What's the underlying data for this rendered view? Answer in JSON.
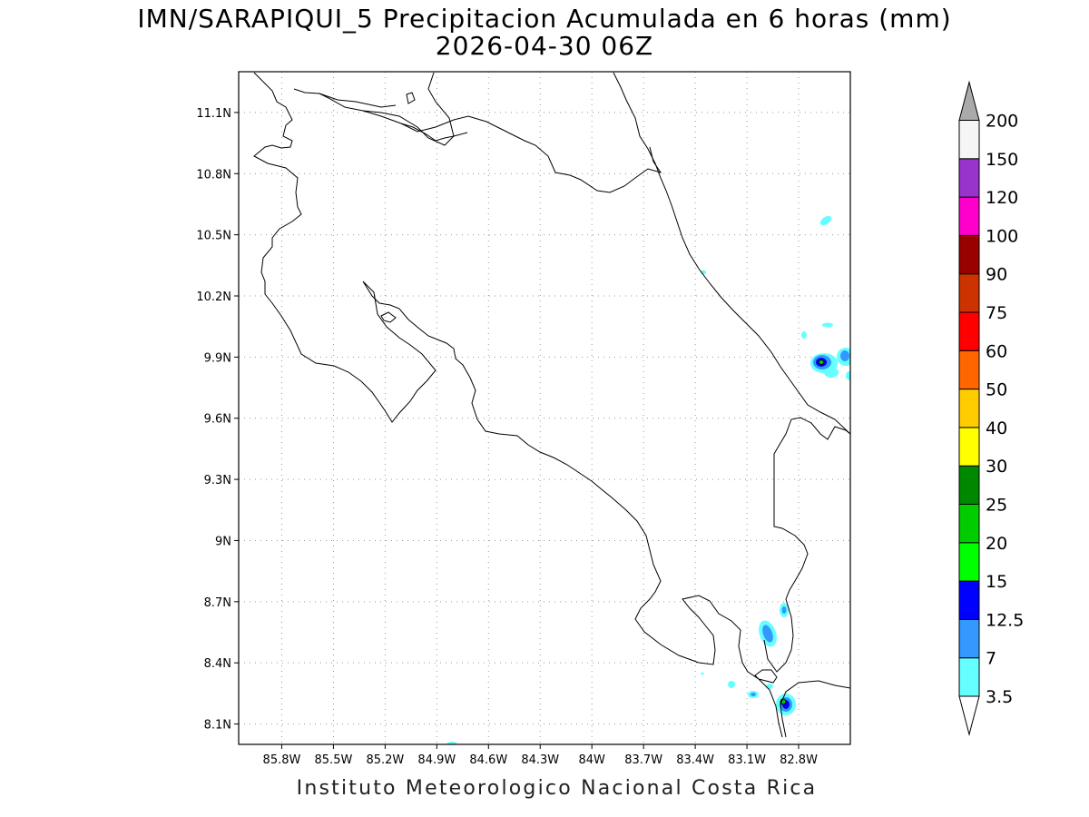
{
  "title": {
    "line1": "IMN/SARAPIQUI_5 Precipitacion Acumulada en 6 horas (mm)",
    "line2": "2026-04-30 06Z"
  },
  "credit": "Instituto Meteorologico Nacional Costa Rica",
  "map": {
    "lon_range": [
      -86.05,
      -82.5
    ],
    "lat_range": [
      8.0,
      11.3
    ],
    "lat_ticks": [
      {
        "value": 11.1,
        "label": "11.1N"
      },
      {
        "value": 10.8,
        "label": "10.8N"
      },
      {
        "value": 10.5,
        "label": "10.5N"
      },
      {
        "value": 10.2,
        "label": "10.2N"
      },
      {
        "value": 9.9,
        "label": "9.9N"
      },
      {
        "value": 9.6,
        "label": "9.6N"
      },
      {
        "value": 9.3,
        "label": "9.3N"
      },
      {
        "value": 9.0,
        "label": "9N"
      },
      {
        "value": 8.7,
        "label": "8.7N"
      },
      {
        "value": 8.4,
        "label": "8.4N"
      },
      {
        "value": 8.1,
        "label": "8.1N"
      }
    ],
    "lon_ticks": [
      {
        "value": -85.8,
        "label": "85.8W"
      },
      {
        "value": -85.5,
        "label": "85.5W"
      },
      {
        "value": -85.2,
        "label": "85.2W"
      },
      {
        "value": -84.9,
        "label": "84.9W"
      },
      {
        "value": -84.6,
        "label": "84.6W"
      },
      {
        "value": -84.3,
        "label": "84.3W"
      },
      {
        "value": -84.0,
        "label": "84W"
      },
      {
        "value": -83.7,
        "label": "83.7W"
      },
      {
        "value": -83.4,
        "label": "83.4W"
      },
      {
        "value": -83.1,
        "label": "83.1W"
      },
      {
        "value": -82.8,
        "label": "82.8W"
      }
    ],
    "grid": true
  },
  "colorbar": {
    "unit": "mm",
    "levels": [
      {
        "label": "3.5",
        "color": "#66ffff"
      },
      {
        "label": "7",
        "color": "#3399ff"
      },
      {
        "label": "12.5",
        "color": "#0000ff"
      },
      {
        "label": "15",
        "color": "#00ff00"
      },
      {
        "label": "20",
        "color": "#00cc00"
      },
      {
        "label": "25",
        "color": "#008800"
      },
      {
        "label": "30",
        "color": "#ffff00"
      },
      {
        "label": "40",
        "color": "#ffcc00"
      },
      {
        "label": "50",
        "color": "#ff6600"
      },
      {
        "label": "60",
        "color": "#ff0000"
      },
      {
        "label": "75",
        "color": "#cc3300"
      },
      {
        "label": "90",
        "color": "#990000"
      },
      {
        "label": "100",
        "color": "#ff00cc"
      },
      {
        "label": "120",
        "color": "#9933cc"
      },
      {
        "label": "150",
        "color": "#f5f5f5"
      },
      {
        "label": "200",
        "color": "#aaaaaa"
      }
    ]
  },
  "precip_cells": [
    {
      "lon": -82.67,
      "lat": 9.88,
      "max_mm": 15
    },
    {
      "lon": -82.53,
      "lat": 9.91,
      "max_mm": 7
    },
    {
      "lon": -82.84,
      "lat": 8.2,
      "max_mm": 15
    },
    {
      "lon": -82.92,
      "lat": 8.55,
      "max_mm": 7
    },
    {
      "lon": -82.82,
      "lat": 8.67,
      "max_mm": 3.5
    },
    {
      "lon": -82.64,
      "lat": 10.58,
      "max_mm": 3.5
    },
    {
      "lon": -83.47,
      "lat": 10.34,
      "max_mm": 3.5
    },
    {
      "lon": -83.06,
      "lat": 8.25,
      "max_mm": 3.5
    },
    {
      "lon": -83.17,
      "lat": 8.3,
      "max_mm": 3.5
    }
  ]
}
